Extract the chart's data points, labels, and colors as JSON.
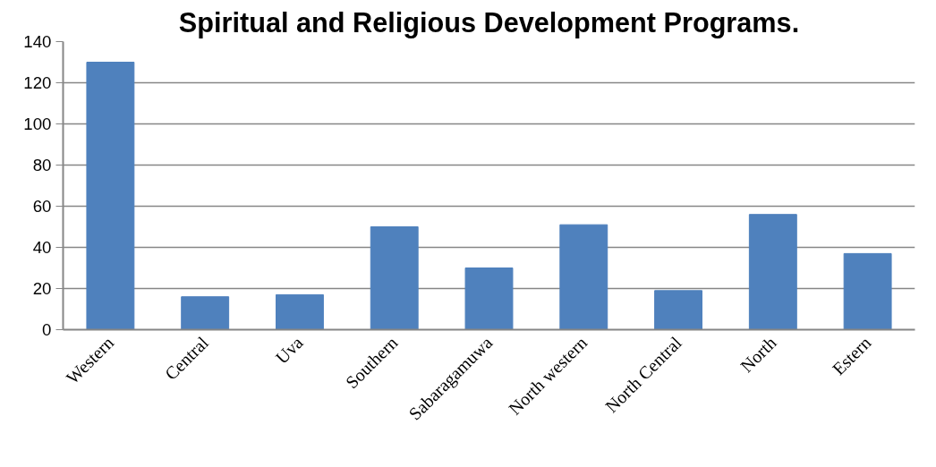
{
  "chart_data": {
    "type": "bar",
    "title": "Spiritual and Religious Development Programs.",
    "categories": [
      "Western",
      "Central",
      "Uva",
      "Southern",
      "Sabaragamuwa",
      "North western",
      "North Central",
      "North",
      "Estern"
    ],
    "values": [
      130,
      16,
      17,
      50,
      30,
      51,
      19,
      56,
      37
    ],
    "color": "#4f81bd",
    "ylim": [
      0,
      140
    ],
    "yticks": [
      0,
      20,
      40,
      60,
      80,
      100,
      120,
      140
    ],
    "grid": "y"
  }
}
